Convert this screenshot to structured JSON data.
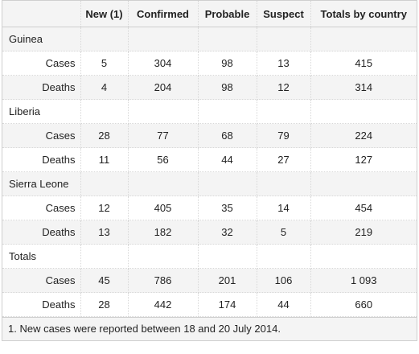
{
  "headers": [
    "",
    "New (1)",
    "Confirmed",
    "Probable",
    "Suspect",
    "Totals by country"
  ],
  "countries": [
    {
      "name": "Guinea",
      "rows": [
        {
          "label": "Cases",
          "values": [
            "5",
            "304",
            "98",
            "13",
            "415"
          ]
        },
        {
          "label": "Deaths",
          "values": [
            "4",
            "204",
            "98",
            "12",
            "314"
          ]
        }
      ]
    },
    {
      "name": "Liberia",
      "rows": [
        {
          "label": "Cases",
          "values": [
            "28",
            "77",
            "68",
            "79",
            "224"
          ]
        },
        {
          "label": "Deaths",
          "values": [
            "11",
            "56",
            "44",
            "27",
            "127"
          ]
        }
      ]
    },
    {
      "name": "Sierra Leone",
      "rows": [
        {
          "label": "Cases",
          "values": [
            "12",
            "405",
            "35",
            "14",
            "454"
          ]
        },
        {
          "label": "Deaths",
          "values": [
            "13",
            "182",
            "32",
            "5",
            "219"
          ]
        }
      ]
    },
    {
      "name": "Totals",
      "rows": [
        {
          "label": "Cases",
          "values": [
            "45",
            "786",
            "201",
            "106",
            "1 093"
          ]
        },
        {
          "label": "Deaths",
          "values": [
            "28",
            "442",
            "174",
            "44",
            "660"
          ]
        }
      ]
    }
  ],
  "footnote": "1. New cases were reported between 18 and 20 July 2014."
}
